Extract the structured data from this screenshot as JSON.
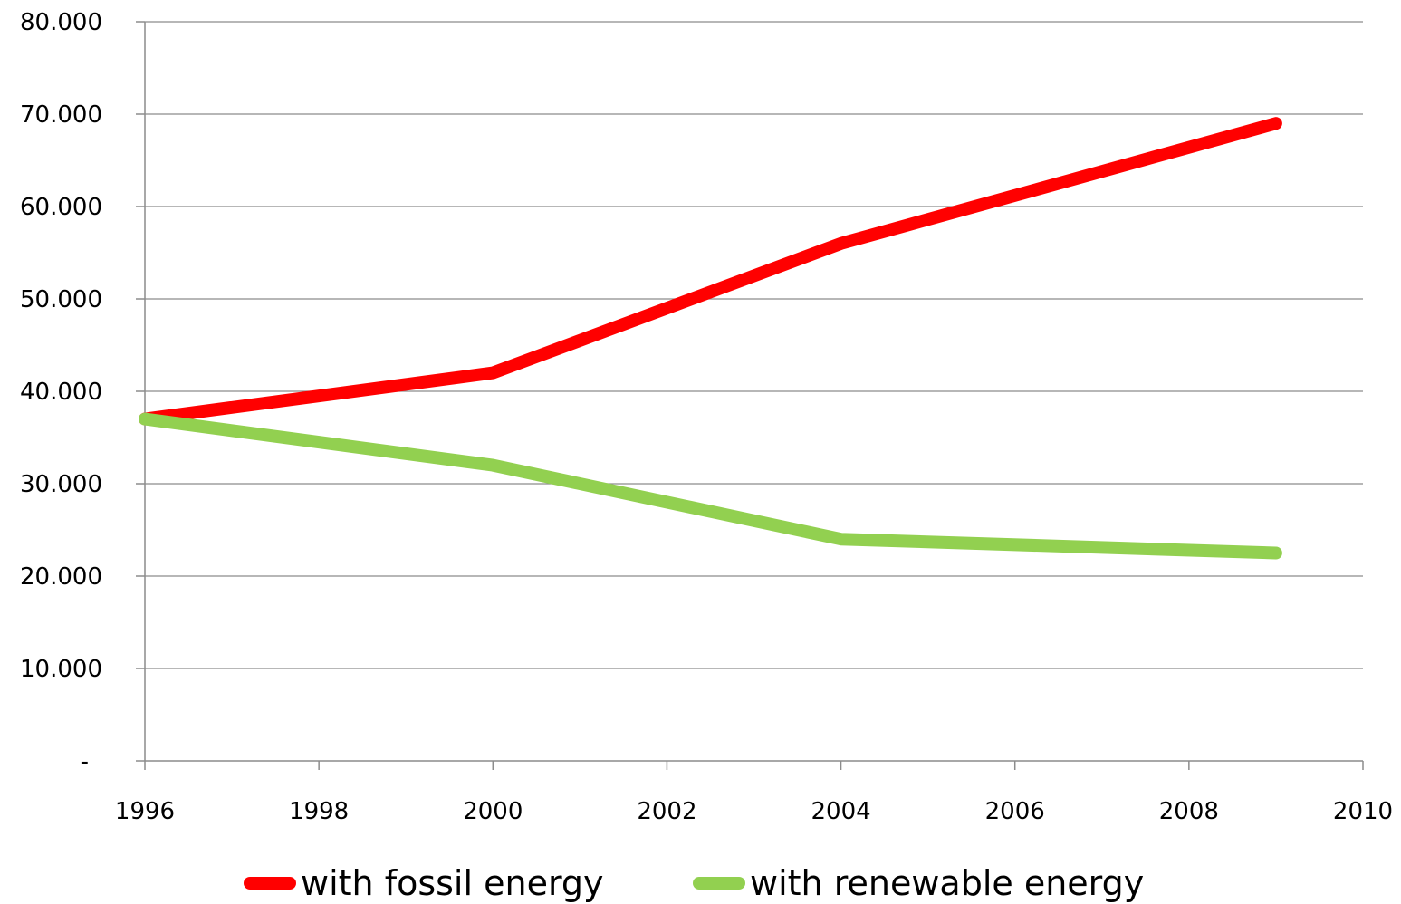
{
  "chart_data": {
    "type": "line",
    "title": "",
    "xlabel": "",
    "ylabel": "",
    "xlim": [
      1996,
      2010
    ],
    "ylim": [
      0,
      80000
    ],
    "x_ticks": [
      1996,
      1998,
      2000,
      2002,
      2004,
      2006,
      2008,
      2010
    ],
    "x_tick_labels": [
      "1996",
      "1998",
      "2000",
      "2002",
      "2004",
      "2006",
      "2008",
      "2010"
    ],
    "y_ticks": [
      0,
      10000,
      20000,
      30000,
      40000,
      50000,
      60000,
      70000,
      80000
    ],
    "y_tick_labels": [
      "-",
      "10.000",
      "20.000",
      "30.000",
      "40.000",
      "50.000",
      "60.000",
      "70.000",
      "80.000"
    ],
    "grid": true,
    "legend_position": "bottom",
    "series": [
      {
        "name": "with fossil energy",
        "color": "#ff0000",
        "x": [
          1996,
          2000,
          2004,
          2009
        ],
        "y": [
          37000,
          42000,
          56000,
          69000
        ]
      },
      {
        "name": "with renewable energy",
        "color": "#92d050",
        "x": [
          1996,
          2000,
          2004,
          2009
        ],
        "y": [
          37000,
          32000,
          24000,
          22500
        ]
      }
    ]
  }
}
